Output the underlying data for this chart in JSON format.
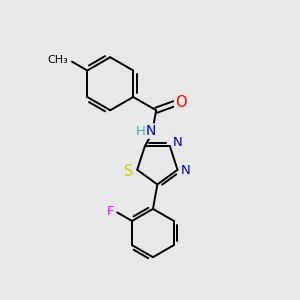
{
  "background_color": "#e8e8e8",
  "bond_color": "#000000",
  "atom_colors": {
    "O": "#ff0000",
    "N": "#0000cc",
    "S": "#cccc00",
    "F": "#ff00ff",
    "H": "#44aaaa",
    "C": "#000000"
  },
  "figsize": [
    3.0,
    3.0
  ],
  "dpi": 100
}
